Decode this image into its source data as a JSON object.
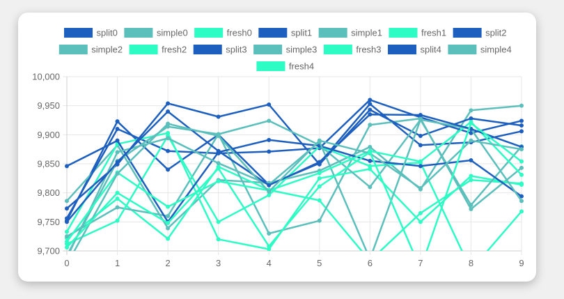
{
  "chart_data": {
    "type": "line",
    "x": [
      0,
      1,
      2,
      3,
      4,
      5,
      6,
      7,
      8,
      9
    ],
    "ylim": [
      9700,
      10000
    ],
    "yticks": [
      9700,
      9750,
      9800,
      9850,
      9900,
      9950,
      10000
    ],
    "ytick_labels": [
      "9,700",
      "9,750",
      "9,800",
      "9,850",
      "9,900",
      "9,950",
      "10,000"
    ],
    "xtick_labels": [
      "0",
      "1",
      "2",
      "3",
      "4",
      "5",
      "6",
      "7",
      "8",
      "9"
    ],
    "grid": true,
    "legend_position": "top",
    "colors": {
      "split": "#1d5fbf",
      "simple": "#5bbfbb",
      "fresh": "#2dfcc4"
    },
    "series": [
      {
        "name": "split0",
        "kind": "split",
        "values": [
          9752,
          9923,
          9840,
          9900,
          9814,
          9851,
          9953,
          9882,
          9887,
          9906
        ]
      },
      {
        "name": "simple0",
        "kind": "simple",
        "values": [
          9786,
          9882,
          9739,
          9822,
          9817,
          9838,
          9879,
          9806,
          9942,
          9950
        ]
      },
      {
        "name": "fresh0",
        "kind": "fresh",
        "values": [
          9722,
          9790,
          9721,
          9845,
          9805,
          9787,
          9683,
          9765,
          9822,
          9816
        ]
      },
      {
        "name": "split1",
        "kind": "split",
        "values": [
          9756,
          9910,
          9872,
          9868,
          9871,
          9877,
          9960,
          9930,
          9903,
          9924
        ]
      },
      {
        "name": "simple1",
        "kind": "simple",
        "values": [
          9725,
          9775,
          9760,
          9901,
          9730,
          9752,
          9917,
          9928,
          9772,
          9843
        ]
      },
      {
        "name": "fresh1",
        "kind": "fresh",
        "values": [
          9733,
          9884,
          9903,
          9720,
          9703,
          9825,
          9841,
          9750,
          9829,
          9814
        ]
      },
      {
        "name": "split2",
        "kind": "split",
        "values": [
          9773,
          9849,
          9954,
          9931,
          9952,
          9849,
          9943,
          9898,
          9928,
          9916
        ]
      },
      {
        "name": "simple2",
        "kind": "simple",
        "values": [
          9692,
          9855,
          9914,
          9901,
          9924,
          9882,
          9810,
          9926,
          9779,
          9880
        ]
      },
      {
        "name": "fresh2",
        "kind": "fresh",
        "values": [
          9712,
          9752,
          9898,
          9750,
          9796,
          9880,
          9846,
          9852,
          9667,
          9768
        ]
      },
      {
        "name": "split3",
        "kind": "split",
        "values": [
          9846,
          9890,
          9750,
          9870,
          9891,
          9881,
          9855,
          9846,
          9856,
          9794
        ]
      },
      {
        "name": "simple3",
        "kind": "simple",
        "values": [
          9688,
          9870,
          9894,
          9851,
          9814,
          9888,
          9686,
          9926,
          9910,
          9786
        ]
      },
      {
        "name": "fresh3",
        "kind": "fresh",
        "values": [
          9716,
          9835,
          9776,
          9820,
          9804,
          9834,
          9872,
          9854,
          9922,
          9831
        ]
      },
      {
        "name": "split4",
        "kind": "split",
        "values": [
          9750,
          9853,
          9940,
          9872,
          9813,
          9853,
          9935,
          9934,
          9910,
          9879
        ]
      },
      {
        "name": "simple4",
        "kind": "simple",
        "values": [
          9677,
          9833,
          9919,
          9898,
          9802,
          9890,
          9868,
          9808,
          9890,
          9875
        ]
      },
      {
        "name": "fresh4",
        "kind": "fresh",
        "values": [
          9706,
          9800,
          9748,
          9842,
          9708,
          9811,
          9870,
          9669,
          9920,
          9854
        ]
      }
    ]
  }
}
